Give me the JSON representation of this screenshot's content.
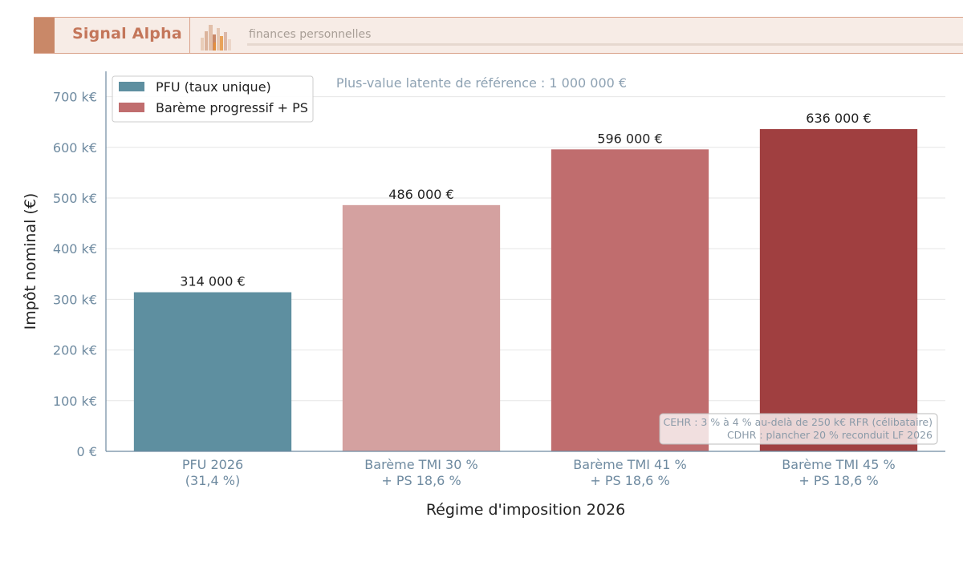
{
  "header": {
    "brand": "Signal Alpha",
    "tagline": "finances personnelles",
    "colors": {
      "banner_bg": "#f7ece6",
      "accent": "#c98868",
      "brand_text": "#c4765a"
    }
  },
  "chart_data": {
    "type": "bar",
    "title": "",
    "xlabel": "Régime d'imposition 2026",
    "ylabel": "Impôt nominal (€)",
    "ylim": [
      0,
      750000
    ],
    "yticks": [
      0,
      100000,
      200000,
      300000,
      400000,
      500000,
      600000,
      700000
    ],
    "ytick_labels": [
      "0 €",
      "100 k€",
      "200 k€",
      "300 k€",
      "400 k€",
      "500 k€",
      "600 k€",
      "700 k€"
    ],
    "grid": "horizontal",
    "categories": [
      [
        "PFU 2026",
        "(31,4 %)"
      ],
      [
        "Barème TMI 30 %",
        "+ PS 18,6 %"
      ],
      [
        "Barème TMI 41 %",
        "+ PS 18,6 %"
      ],
      [
        "Barème TMI 45 %",
        "+ PS 18,6 %"
      ]
    ],
    "values": [
      314000,
      486000,
      596000,
      636000
    ],
    "value_labels": [
      "314 000 €",
      "486 000 €",
      "596 000 €",
      "636 000 €"
    ],
    "bar_colors": [
      "#5e8fa0",
      "#d4a1a0",
      "#c06d6e",
      "#a03f40"
    ],
    "legend": {
      "position": "top-left",
      "entries": [
        {
          "label": "PFU (taux unique)",
          "color": "#5e8fa0"
        },
        {
          "label": "Barème progressif + PS",
          "color": "#c06d6e"
        }
      ]
    },
    "annotations": {
      "reference": "Plus-value latente de référence : 1 000 000 €",
      "note_lines": [
        "CEHR : 3 % à 4 % au-delà de 250 k€ RFR (célibataire)",
        "CDHR : plancher 20 % reconduit LF 2026"
      ]
    }
  }
}
